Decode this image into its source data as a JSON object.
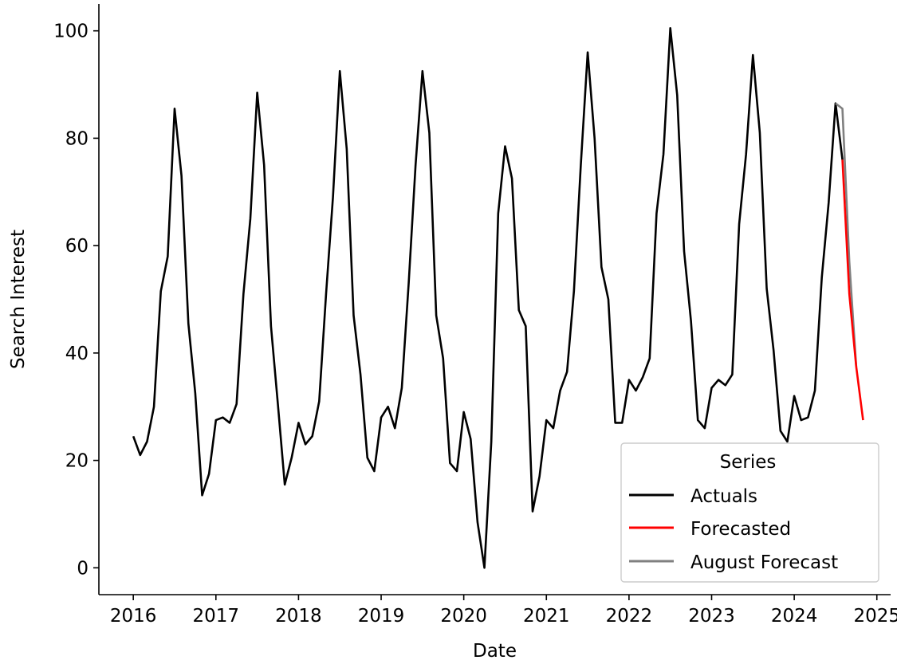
{
  "chart_data": {
    "type": "line",
    "title": "",
    "xlabel": "Date",
    "ylabel": "Search Interest",
    "xlim": [
      "2015-08-01",
      "2025-03-01"
    ],
    "ylim": [
      -5,
      105
    ],
    "x_ticks": [
      "2016",
      "2017",
      "2018",
      "2019",
      "2020",
      "2021",
      "2022",
      "2023",
      "2024",
      "2025"
    ],
    "y_ticks": [
      0,
      20,
      40,
      60,
      80,
      100
    ],
    "grid": false,
    "legend": {
      "title": "Series",
      "placement": "lower-right"
    },
    "series": [
      {
        "name": "Actuals",
        "color": "#000000",
        "x": [
          "2016-01",
          "2016-02",
          "2016-03",
          "2016-04",
          "2016-05",
          "2016-06",
          "2016-07",
          "2016-08",
          "2016-09",
          "2016-10",
          "2016-11",
          "2016-12",
          "2017-01",
          "2017-02",
          "2017-03",
          "2017-04",
          "2017-05",
          "2017-06",
          "2017-07",
          "2017-08",
          "2017-09",
          "2017-10",
          "2017-11",
          "2017-12",
          "2018-01",
          "2018-02",
          "2018-03",
          "2018-04",
          "2018-05",
          "2018-06",
          "2018-07",
          "2018-08",
          "2018-09",
          "2018-10",
          "2018-11",
          "2018-12",
          "2019-01",
          "2019-02",
          "2019-03",
          "2019-04",
          "2019-05",
          "2019-06",
          "2019-07",
          "2019-08",
          "2019-09",
          "2019-10",
          "2019-11",
          "2019-12",
          "2020-01",
          "2020-02",
          "2020-03",
          "2020-04",
          "2020-05",
          "2020-06",
          "2020-07",
          "2020-08",
          "2020-09",
          "2020-10",
          "2020-11",
          "2020-12",
          "2021-01",
          "2021-02",
          "2021-03",
          "2021-04",
          "2021-05",
          "2021-06",
          "2021-07",
          "2021-08",
          "2021-09",
          "2021-10",
          "2021-11",
          "2021-12",
          "2022-01",
          "2022-02",
          "2022-03",
          "2022-04",
          "2022-05",
          "2022-06",
          "2022-07",
          "2022-08",
          "2022-09",
          "2022-10",
          "2022-11",
          "2022-12",
          "2023-01",
          "2023-02",
          "2023-03",
          "2023-04",
          "2023-05",
          "2023-06",
          "2023-07",
          "2023-08",
          "2023-09",
          "2023-10",
          "2023-11",
          "2023-12",
          "2024-01",
          "2024-02",
          "2024-03",
          "2024-04",
          "2024-05",
          "2024-06",
          "2024-07",
          "2024-08"
        ],
        "values": [
          24.5,
          21,
          23.5,
          30,
          51.5,
          58,
          85.5,
          73,
          45.5,
          32.5,
          13.5,
          17.5,
          27.5,
          28,
          27,
          30.5,
          51,
          65,
          88.5,
          75,
          45,
          30.5,
          15.5,
          20.5,
          27,
          23,
          24.5,
          31,
          51,
          69,
          92.5,
          78,
          47,
          36,
          20.5,
          18,
          28,
          30,
          26,
          33.5,
          53,
          75,
          92.5,
          81,
          47,
          39,
          19.5,
          18,
          29,
          24,
          8.5,
          0,
          23.5,
          66,
          78.5,
          72.5,
          48,
          45,
          10.5,
          17,
          27.5,
          26,
          33,
          36.5,
          51.5,
          75,
          96,
          80,
          56,
          50,
          27,
          27,
          35,
          33,
          35.5,
          39,
          66,
          77,
          100.5,
          88,
          59,
          46,
          27.5,
          26,
          33.5,
          35,
          34,
          36,
          64,
          77,
          95.5,
          81,
          52,
          40.5,
          25.5,
          23.5,
          32,
          27.5,
          28,
          33,
          54,
          68,
          86.5,
          76
        ]
      },
      {
        "name": "Forecasted",
        "color": "#ff0000",
        "x": [
          "2024-08",
          "2024-09",
          "2024-10",
          "2024-11"
        ],
        "values": [
          76,
          51,
          37.5,
          27.5
        ]
      },
      {
        "name": "August Forecast",
        "color": "#808080",
        "x": [
          "2024-07",
          "2024-08",
          "2024-09",
          "2024-10"
        ],
        "values": [
          86.5,
          85.5,
          57,
          37.5
        ]
      }
    ]
  }
}
